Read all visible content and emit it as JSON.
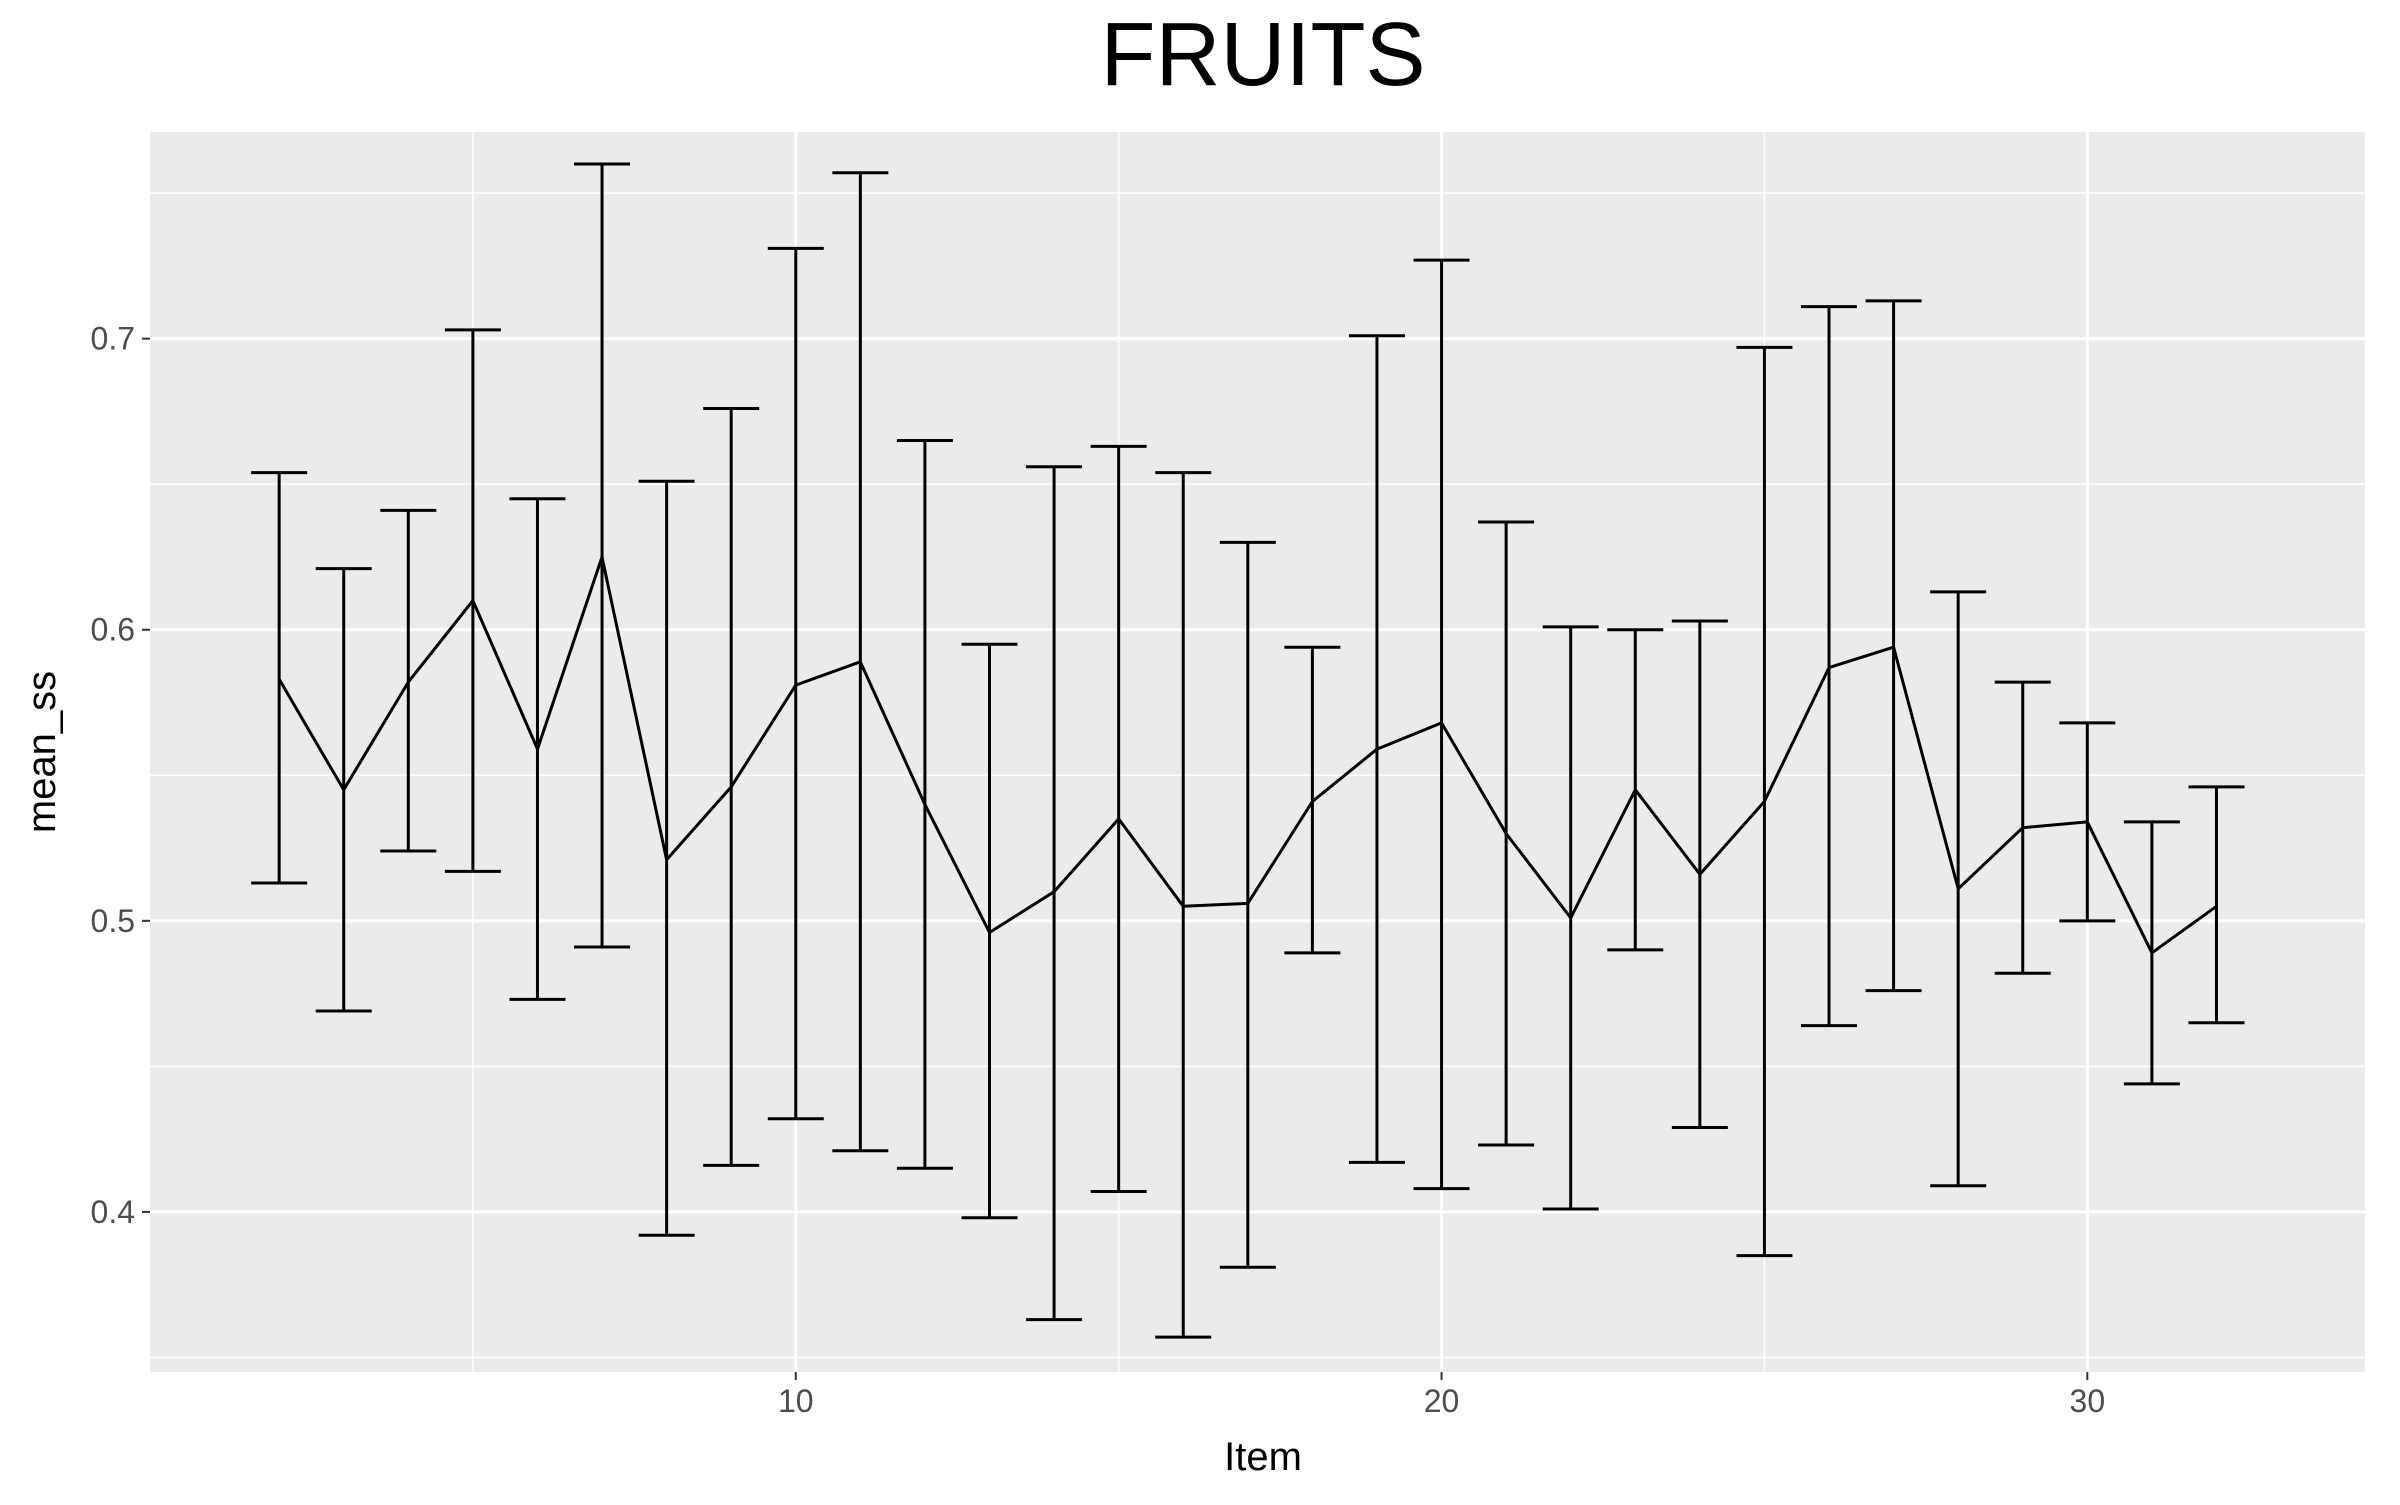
{
  "chart_data": {
    "type": "line",
    "title": "FRUITS",
    "xlabel": "Item",
    "ylabel": "mean_ss",
    "xlim": [
      0,
      34.3
    ],
    "ylim": [
      0.345,
      0.771
    ],
    "x_ticks": [
      10,
      20,
      30
    ],
    "y_ticks": [
      0.4,
      0.5,
      0.6,
      0.7
    ],
    "x_tick_labels": [
      "10",
      "20",
      "30"
    ],
    "y_tick_labels": [
      "0.4",
      "0.5",
      "0.6",
      "0.7"
    ],
    "grid": true,
    "background": "#ebebeb",
    "line_color": "#000000",
    "series": [
      {
        "x": [
          2,
          3,
          4,
          5,
          6,
          7,
          8,
          9,
          10,
          11,
          12,
          13,
          14,
          15,
          16,
          17,
          18,
          19,
          20,
          21,
          22,
          23,
          24,
          25,
          26,
          27,
          28,
          29,
          30,
          31,
          32
        ],
        "y": [
          0.583,
          0.545,
          0.582,
          0.61,
          0.559,
          0.625,
          0.521,
          0.546,
          0.581,
          0.589,
          0.54,
          0.496,
          0.51,
          0.535,
          0.505,
          0.506,
          0.541,
          0.559,
          0.568,
          0.53,
          0.501,
          0.545,
          0.516,
          0.541,
          0.587,
          0.594,
          0.511,
          0.532,
          0.534,
          0.489,
          0.505
        ],
        "lower": [
          0.513,
          0.469,
          0.524,
          0.517,
          0.473,
          0.491,
          0.392,
          0.416,
          0.432,
          0.421,
          0.415,
          0.398,
          0.363,
          0.407,
          0.357,
          0.381,
          0.489,
          0.417,
          0.408,
          0.423,
          0.401,
          0.49,
          0.429,
          0.385,
          0.464,
          0.476,
          0.409,
          0.482,
          0.5,
          0.444,
          0.465
        ],
        "upper": [
          0.654,
          0.621,
          0.641,
          0.703,
          0.645,
          0.76,
          0.651,
          0.676,
          0.731,
          0.757,
          0.665,
          0.595,
          0.656,
          0.663,
          0.654,
          0.63,
          0.594,
          0.701,
          0.727,
          0.637,
          0.601,
          0.6,
          0.603,
          0.697,
          0.711,
          0.713,
          0.613,
          0.582,
          0.568,
          0.534,
          0.546
        ]
      }
    ]
  }
}
